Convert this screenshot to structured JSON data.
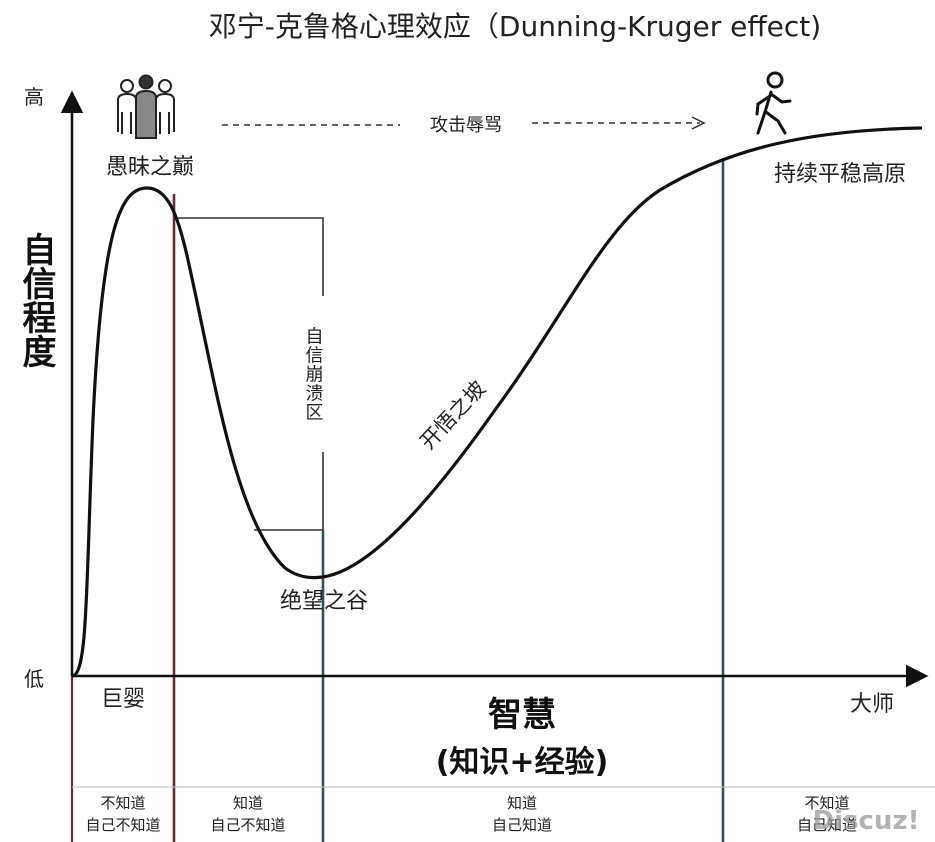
{
  "title": "邓宁-克鲁格心理效应（Dunning-Kruger effect)",
  "y_axis": {
    "label": "自信程度",
    "high": "高",
    "low": "低"
  },
  "x_axis": {
    "start_label": "巨婴",
    "end_label": "大师",
    "main_label": "智慧",
    "sub_label": "(知识+经验)"
  },
  "annotations": {
    "peak": "愚昧之巅",
    "attack": "攻击辱骂",
    "plateau": "持续平稳高原",
    "collapse": "自信崩溃区",
    "slope": "开悟之坡",
    "valley": "绝望之谷"
  },
  "stages": [
    {
      "line1": "不知道",
      "line2": "自己不知道"
    },
    {
      "line1": "知道",
      "line2": "自己不知道"
    },
    {
      "line1": "知道",
      "line2": "自己知道"
    },
    {
      "line1": "不知道",
      "line2": "自己知道"
    }
  ],
  "icons": {
    "group": "group-of-people-icon",
    "walker": "walking-person-icon"
  },
  "watermark": "Discuz!",
  "colors": {
    "curve": "#111111",
    "axis": "#111111",
    "divider_red": "#6b2a36",
    "divider_teal": "#2f5356",
    "text": "#222222",
    "bracket": "#333333",
    "watermark": "#9a9a9a"
  }
}
